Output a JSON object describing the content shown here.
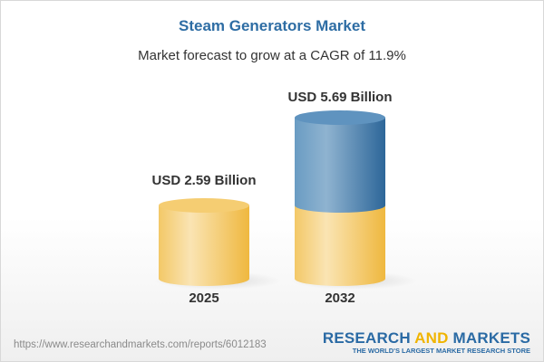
{
  "header": {
    "title": "Steam Generators Market",
    "subtitle": "Market forecast to grow at a CAGR of 11.9%"
  },
  "chart_data": {
    "type": "bar",
    "style": "3d-cylinder",
    "categories": [
      "2025",
      "2032"
    ],
    "values": [
      2.59,
      5.69
    ],
    "unit": "USD Billion",
    "data_labels": [
      "USD 2.59 Billion",
      "USD 5.69 Billion"
    ],
    "cagr": "11.9%",
    "colors": {
      "base": "#f2c45a",
      "growth": "#3f7fb3"
    }
  },
  "footer": {
    "url": "https://www.researchandmarkets.com/reports/6012183",
    "logo_part1": "RESEARCH ",
    "logo_part2": "AND",
    "logo_part3": " MARKETS",
    "tagline": "THE WORLD'S LARGEST MARKET RESEARCH STORE"
  }
}
